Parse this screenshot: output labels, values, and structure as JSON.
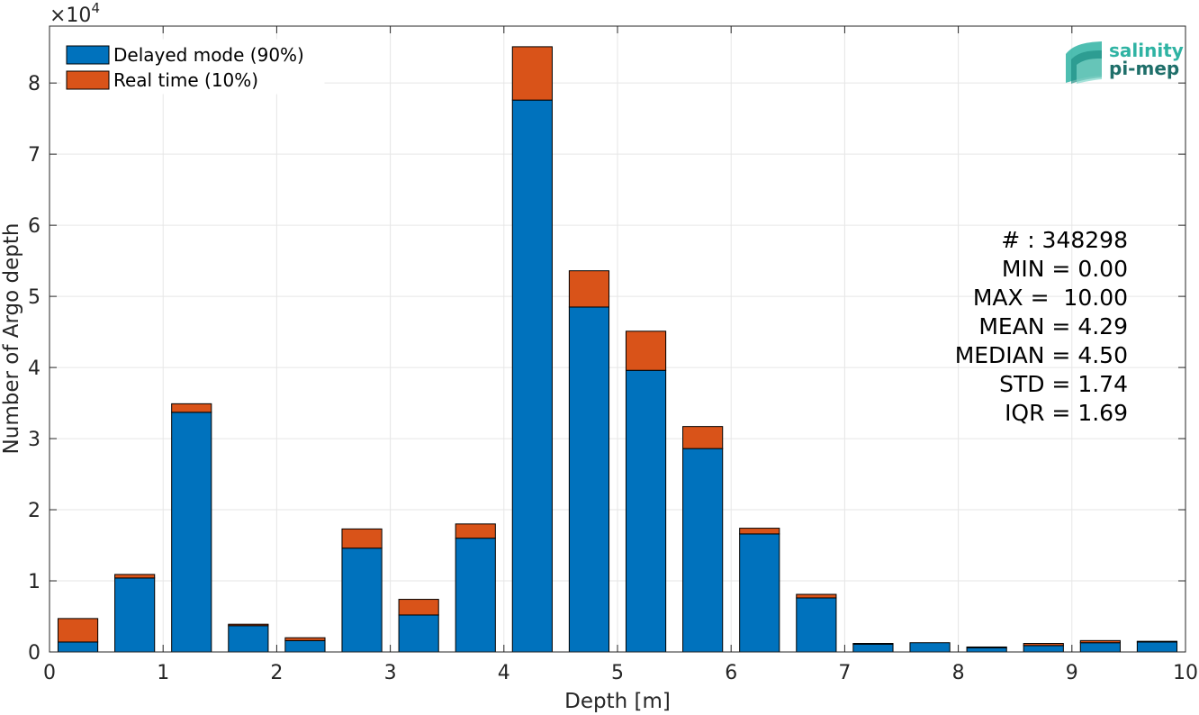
{
  "chart_data": {
    "type": "bar",
    "stacked": true,
    "xlabel": "Depth [m]",
    "ylabel": "Number of Argo depth",
    "xlim": [
      0,
      10
    ],
    "ylim": [
      0,
      88000
    ],
    "y_multiplier_label": "×10",
    "y_multiplier_exp": "4",
    "xticks": [
      "0",
      "1",
      "2",
      "3",
      "4",
      "5",
      "6",
      "7",
      "8",
      "9",
      "10"
    ],
    "yticks": [
      "0",
      "1",
      "2",
      "3",
      "4",
      "5",
      "6",
      "7",
      "8"
    ],
    "grid": true,
    "legend_position": "top-left",
    "bin_width": 0.5,
    "bin_centers": [
      0.25,
      0.75,
      1.25,
      1.75,
      2.25,
      2.75,
      3.25,
      3.75,
      4.25,
      4.75,
      5.25,
      5.75,
      6.25,
      6.75,
      7.25,
      7.75,
      8.25,
      8.75,
      9.25,
      9.75
    ],
    "series": [
      {
        "name": "Delayed mode (90%)",
        "color": "#0072BD",
        "values": [
          1400,
          10400,
          33700,
          3700,
          1600,
          14600,
          5200,
          16000,
          77600,
          48500,
          39600,
          28600,
          16600,
          7600,
          1100,
          1300,
          600,
          900,
          1300,
          1400
        ]
      },
      {
        "name": "Real time (10%)",
        "color": "#D95319",
        "values": [
          3300,
          500,
          1200,
          200,
          400,
          2700,
          2200,
          2000,
          7500,
          5100,
          5500,
          3100,
          800,
          500,
          100,
          0,
          100,
          300,
          300,
          100
        ]
      }
    ],
    "annotations": [
      "# : 348298",
      "MIN = 0.00",
      "MAX =  10.00",
      "MEAN = 4.29",
      "MEDIAN = 4.50",
      "STD = 1.74",
      "IQR = 1.69"
    ]
  },
  "logo": {
    "line1": "salinity",
    "line2": "pi-mep",
    "color1": "#2fb3a3",
    "color2": "#1f6f6a"
  }
}
